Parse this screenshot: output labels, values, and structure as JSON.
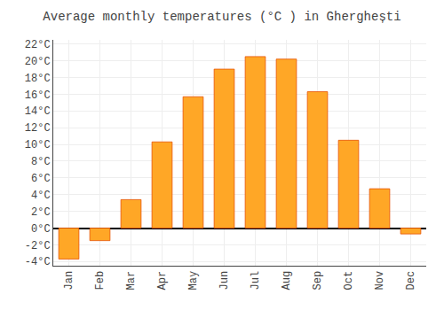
{
  "chart_data": {
    "type": "bar",
    "title": "Average monthly temperatures (°C ) in Gherghеști",
    "categories": [
      "Jan",
      "Feb",
      "Mar",
      "Apr",
      "May",
      "Jun",
      "Jul",
      "Aug",
      "Sep",
      "Oct",
      "Nov",
      "Dec"
    ],
    "values": [
      -3.7,
      -1.5,
      3.4,
      10.3,
      15.7,
      19.0,
      20.5,
      20.2,
      16.3,
      10.5,
      4.7,
      -0.7
    ],
    "color": "#FFA726",
    "ylim": [
      -4.5,
      22.5
    ],
    "yticks": [
      {
        "value": -4,
        "label": "-4°C"
      },
      {
        "value": -2,
        "label": "-2°C"
      },
      {
        "value": 0,
        "label": "0°C"
      },
      {
        "value": 2,
        "label": "2°C"
      },
      {
        "value": 4,
        "label": "4°C"
      },
      {
        "value": 6,
        "label": "6°C"
      },
      {
        "value": 8,
        "label": "8°C"
      },
      {
        "value": 10,
        "label": "10°C"
      },
      {
        "value": 12,
        "label": "12°C"
      },
      {
        "value": 14,
        "label": "14°C"
      },
      {
        "value": 16,
        "label": "16°C"
      },
      {
        "value": 18,
        "label": "18°C"
      },
      {
        "value": 20,
        "label": "20°C"
      },
      {
        "value": 22,
        "label": "22°C"
      }
    ],
    "grid": true
  }
}
